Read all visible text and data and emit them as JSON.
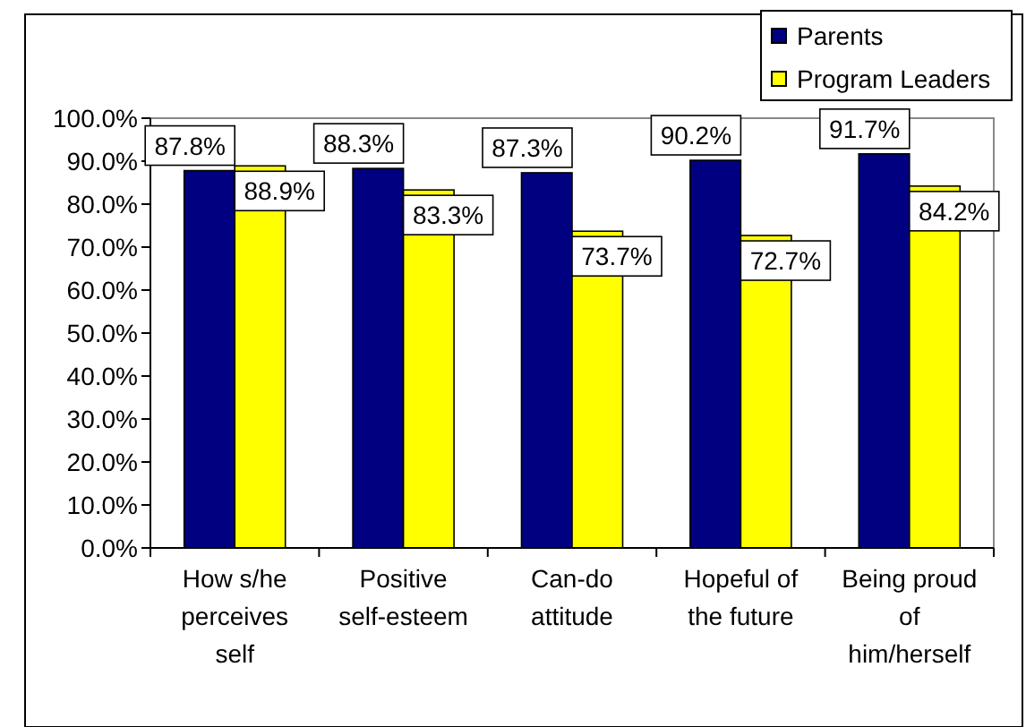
{
  "chart_data": {
    "type": "bar",
    "categories": [
      "How  s/he\nperceives\nself",
      "Positive\nself-esteem",
      "Can-do\nattitude",
      "Hopeful of\nthe future",
      "Being proud\nof\nhim/herself"
    ],
    "series": [
      {
        "name": "Parents",
        "color": "#000080",
        "values": [
          87.8,
          88.3,
          87.3,
          90.2,
          91.7
        ]
      },
      {
        "name": "Program Leaders",
        "color": "#ffff00",
        "values": [
          88.9,
          83.3,
          73.7,
          72.7,
          84.2
        ]
      }
    ],
    "ylim": [
      0,
      100
    ],
    "yticks": [
      {
        "value": 0,
        "label": "0.0%"
      },
      {
        "value": 10,
        "label": "10.0%"
      },
      {
        "value": 20,
        "label": "20.0%"
      },
      {
        "value": 30,
        "label": "30.0%"
      },
      {
        "value": 40,
        "label": "40.0%"
      },
      {
        "value": 50,
        "label": "50.0%"
      },
      {
        "value": 60,
        "label": "60.0%"
      },
      {
        "value": 70,
        "label": "70.0%"
      },
      {
        "value": 80,
        "label": "80.0%"
      },
      {
        "value": 90,
        "label": "90.0%"
      },
      {
        "value": 100,
        "label": "100.0%"
      }
    ],
    "value_labels": [
      [
        "87.8%",
        "88.3%",
        "87.3%",
        "90.2%",
        "91.7%"
      ],
      [
        "88.9%",
        "83.3%",
        "73.7%",
        "72.7%",
        "84.2%"
      ]
    ],
    "grid": false,
    "legend": "top right"
  }
}
